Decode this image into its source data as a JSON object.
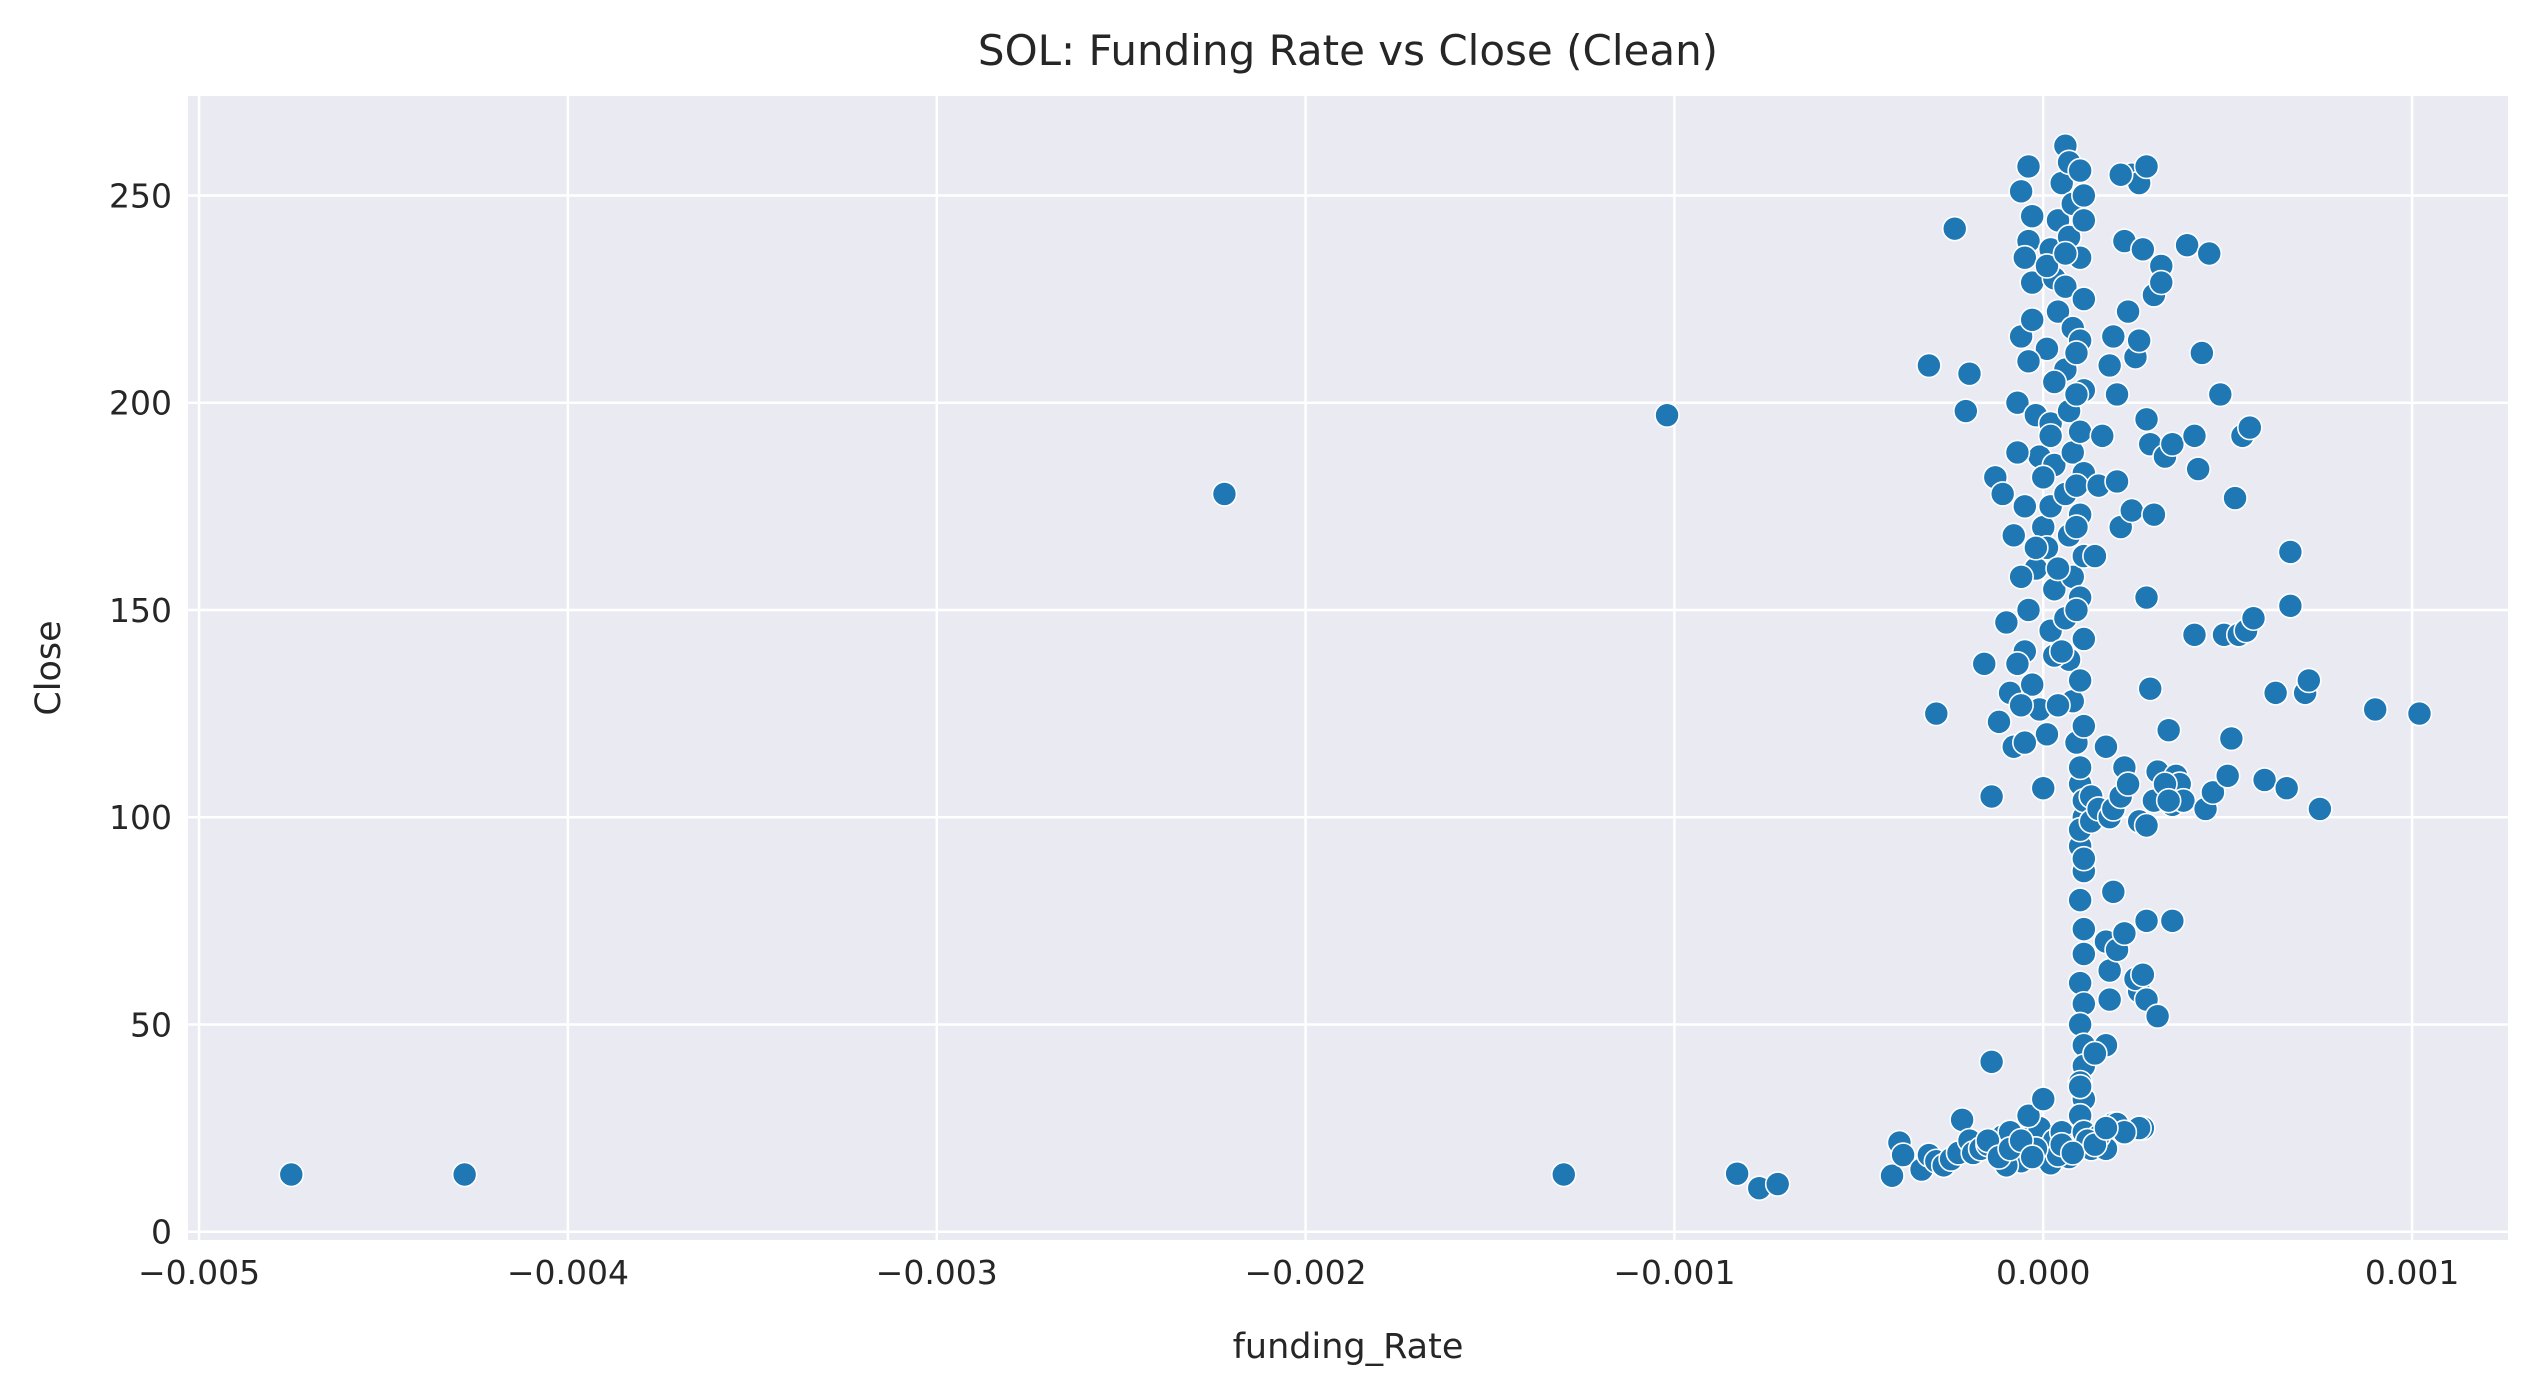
{
  "chart_data": {
    "type": "scatter",
    "title": "SOL: Funding Rate vs Close (Clean)",
    "xlabel": "funding_Rate",
    "ylabel": "Close",
    "xlim": [
      -0.00503,
      0.00126
    ],
    "ylim": [
      -2,
      274
    ],
    "xticks": [
      -0.005,
      -0.004,
      -0.003,
      -0.002,
      -0.001,
      0.0,
      0.001
    ],
    "xtick_labels": [
      "−0.005",
      "−0.004",
      "−0.003",
      "−0.002",
      "−0.001",
      "0.000",
      "0.001"
    ],
    "yticks": [
      0,
      50,
      100,
      150,
      200,
      250
    ],
    "ytick_labels": [
      "0",
      "50",
      "100",
      "150",
      "200",
      "250"
    ],
    "grid": true,
    "background": "#eaeaf2",
    "point_color": "#1f77b4",
    "points": [
      [
        -0.00475,
        13.8
      ],
      [
        -0.00428,
        13.8
      ],
      [
        -0.00222,
        178
      ],
      [
        -0.00102,
        197
      ],
      [
        -0.0013,
        13.8
      ],
      [
        -0.00083,
        14
      ],
      [
        -0.00077,
        10.5
      ],
      [
        -0.00072,
        11.5
      ],
      [
        -0.00041,
        13.5
      ],
      [
        -0.00039,
        21.5
      ],
      [
        -0.00038,
        18.5
      ],
      [
        -0.00033,
        15
      ],
      [
        -0.00031,
        18.5
      ],
      [
        -0.00029,
        17
      ],
      [
        -0.00027,
        16
      ],
      [
        -0.00025,
        17.5
      ],
      [
        -0.00023,
        19
      ],
      [
        -0.00022,
        27
      ],
      [
        -0.0002,
        22
      ],
      [
        -0.00019,
        19
      ],
      [
        -0.00017,
        20
      ],
      [
        -0.00015,
        21
      ],
      [
        -0.00013,
        22
      ],
      [
        -0.00011,
        23
      ],
      [
        -9e-05,
        24
      ],
      [
        -7e-05,
        19
      ],
      [
        -5e-05,
        21
      ],
      [
        -3e-05,
        23
      ],
      [
        -1e-05,
        25
      ],
      [
        1e-05,
        20
      ],
      [
        3e-05,
        22
      ],
      [
        5e-05,
        24
      ],
      [
        7e-05,
        19
      ],
      [
        9e-05,
        21
      ],
      [
        0.00011,
        23
      ],
      [
        0.00013,
        20
      ],
      [
        0.00016,
        22
      ],
      [
        0.00019,
        26
      ],
      [
        0.00022,
        24
      ],
      [
        0.00027,
        25
      ],
      [
        0.00017,
        20
      ],
      [
        -6e-05,
        17
      ],
      [
        2e-05,
        16.5
      ],
      [
        -4e-05,
        28
      ],
      [
        0.0,
        32
      ],
      [
        -0.00014,
        41
      ],
      [
        7e-05,
        18
      ],
      [
        -0.0001,
        16
      ],
      [
        4e-05,
        18.5
      ],
      [
        -2e-05,
        20
      ],
      [
        -0.00029,
        125
      ],
      [
        -0.00031,
        209
      ],
      [
        -0.00024,
        242
      ],
      [
        -0.0002,
        207
      ],
      [
        -0.00021,
        198
      ],
      [
        -0.00014,
        105
      ],
      [
        -0.00016,
        137
      ],
      [
        -0.00012,
        123
      ],
      [
        -0.00013,
        182
      ],
      [
        -0.00011,
        178
      ],
      [
        -0.0001,
        147
      ],
      [
        -9e-05,
        130
      ],
      [
        -8e-05,
        117
      ],
      [
        -7e-05,
        200
      ],
      [
        -6e-05,
        216
      ],
      [
        -6e-05,
        251
      ],
      [
        -4e-05,
        257
      ],
      [
        -4e-05,
        239
      ],
      [
        -3e-05,
        229
      ],
      [
        -5e-05,
        235
      ],
      [
        -3e-05,
        220
      ],
      [
        -2e-05,
        197
      ],
      [
        -1e-05,
        187
      ],
      [
        0.0,
        170
      ],
      [
        -2e-05,
        160
      ],
      [
        -4e-05,
        150
      ],
      [
        -5e-05,
        140
      ],
      [
        -3e-05,
        132
      ],
      [
        -1e-05,
        126
      ],
      [
        1e-05,
        120
      ],
      [
        2e-05,
        145
      ],
      [
        3e-05,
        155
      ],
      [
        1e-05,
        165
      ],
      [
        2e-05,
        175
      ],
      [
        3e-05,
        185
      ],
      [
        2e-05,
        195
      ],
      [
        3e-05,
        205
      ],
      [
        1e-05,
        213
      ],
      [
        4e-05,
        222
      ],
      [
        3e-05,
        230
      ],
      [
        2e-05,
        237
      ],
      [
        4e-05,
        244
      ],
      [
        5e-05,
        253
      ],
      [
        6e-05,
        262
      ],
      [
        7e-05,
        258
      ],
      [
        8e-05,
        248
      ],
      [
        7e-05,
        240
      ],
      [
        6e-05,
        228
      ],
      [
        8e-05,
        218
      ],
      [
        6e-05,
        208
      ],
      [
        7e-05,
        198
      ],
      [
        8e-05,
        188
      ],
      [
        6e-05,
        178
      ],
      [
        7e-05,
        168
      ],
      [
        8e-05,
        158
      ],
      [
        6e-05,
        148
      ],
      [
        7e-05,
        138
      ],
      [
        8e-05,
        128
      ],
      [
        9e-05,
        118
      ],
      [
        0.0001,
        108
      ],
      [
        0.00011,
        100
      ],
      [
        0.0001,
        93
      ],
      [
        0.00011,
        87
      ],
      [
        0.0001,
        80
      ],
      [
        0.00011,
        73
      ],
      [
        0.00011,
        67
      ],
      [
        0.0001,
        60
      ],
      [
        0.00011,
        55
      ],
      [
        0.0001,
        50
      ],
      [
        0.00011,
        45
      ],
      [
        0.00011,
        40
      ],
      [
        0.0001,
        36
      ],
      [
        0.00011,
        32
      ],
      [
        0.0001,
        28
      ],
      [
        0.00011,
        24
      ],
      [
        0.0001,
        35
      ],
      [
        0.00011,
        90
      ],
      [
        0.0001,
        97
      ],
      [
        0.00011,
        104
      ],
      [
        0.0001,
        112
      ],
      [
        0.00011,
        122
      ],
      [
        0.0001,
        133
      ],
      [
        0.00011,
        143
      ],
      [
        0.0001,
        153
      ],
      [
        0.00011,
        163
      ],
      [
        0.0001,
        173
      ],
      [
        0.00011,
        183
      ],
      [
        0.0001,
        193
      ],
      [
        0.00011,
        203
      ],
      [
        0.0001,
        215
      ],
      [
        0.00011,
        225
      ],
      [
        0.0001,
        235
      ],
      [
        0.00011,
        244
      ],
      [
        0.0001,
        256
      ],
      [
        0.00011,
        250
      ],
      [
        9e-05,
        202
      ],
      [
        9e-05,
        212
      ],
      [
        9e-05,
        170
      ],
      [
        9e-05,
        180
      ],
      [
        9e-05,
        150
      ],
      [
        0.0,
        107
      ],
      [
        3e-05,
        139
      ],
      [
        4e-05,
        127
      ],
      [
        -7e-05,
        188
      ],
      [
        -8e-05,
        168
      ],
      [
        -6e-05,
        158
      ],
      [
        -5e-05,
        175
      ],
      [
        -7e-05,
        137
      ],
      [
        -6e-05,
        127
      ],
      [
        -5e-05,
        118
      ],
      [
        0.00013,
        105
      ],
      [
        0.00014,
        163
      ],
      [
        0.00015,
        180
      ],
      [
        0.00016,
        192
      ],
      [
        0.00017,
        117
      ],
      [
        0.00018,
        209
      ],
      [
        0.00019,
        216
      ],
      [
        0.0002,
        202
      ],
      [
        0.0002,
        181
      ],
      [
        0.00021,
        170
      ],
      [
        0.00022,
        112
      ],
      [
        0.00022,
        239
      ],
      [
        0.00023,
        222
      ],
      [
        0.00024,
        174
      ],
      [
        0.00025,
        211
      ],
      [
        0.00026,
        215
      ],
      [
        0.00026,
        58
      ],
      [
        0.00027,
        237
      ],
      [
        0.00028,
        153
      ],
      [
        0.00028,
        196
      ],
      [
        0.00029,
        131
      ],
      [
        0.00029,
        190
      ],
      [
        0.0003,
        173
      ],
      [
        0.0003,
        226
      ],
      [
        0.00031,
        111
      ],
      [
        0.00032,
        233
      ],
      [
        0.00032,
        229
      ],
      [
        0.00033,
        187
      ],
      [
        0.00034,
        121
      ],
      [
        0.00035,
        190
      ],
      [
        0.00035,
        103
      ],
      [
        0.00036,
        110
      ],
      [
        0.00037,
        108
      ],
      [
        0.00038,
        104
      ],
      [
        0.00039,
        238
      ],
      [
        0.00041,
        144
      ],
      [
        0.00041,
        192
      ],
      [
        0.00042,
        184
      ],
      [
        0.00043,
        212
      ],
      [
        0.00044,
        102
      ],
      [
        0.00045,
        236
      ],
      [
        0.00046,
        106
      ],
      [
        0.00048,
        202
      ],
      [
        0.00049,
        144
      ],
      [
        0.0005,
        110
      ],
      [
        0.00051,
        119
      ],
      [
        0.00052,
        177
      ],
      [
        0.00053,
        144
      ],
      [
        0.00054,
        192
      ],
      [
        0.00055,
        145
      ],
      [
        0.00056,
        194
      ],
      [
        0.00057,
        148
      ],
      [
        0.0006,
        109
      ],
      [
        0.00063,
        130
      ],
      [
        0.00066,
        107
      ],
      [
        0.00067,
        164
      ],
      [
        0.00067,
        151
      ],
      [
        0.00071,
        130
      ],
      [
        0.00072,
        133
      ],
      [
        0.00075,
        102
      ],
      [
        0.0009,
        126
      ],
      [
        0.00102,
        125
      ],
      [
        0.00024,
        255
      ],
      [
        0.00026,
        253
      ],
      [
        0.00028,
        257
      ],
      [
        0.00021,
        255
      ],
      [
        0.00017,
        70
      ],
      [
        0.00018,
        63
      ],
      [
        0.00018,
        56
      ],
      [
        0.00019,
        82
      ],
      [
        0.0002,
        68
      ],
      [
        0.00022,
        72
      ],
      [
        0.00025,
        61
      ],
      [
        0.00027,
        62
      ],
      [
        0.00028,
        75
      ],
      [
        0.00028,
        56
      ],
      [
        0.00031,
        52
      ],
      [
        0.00035,
        75
      ],
      [
        0.00017,
        45
      ],
      [
        0.00014,
        43
      ],
      [
        0.00013,
        99
      ],
      [
        0.00015,
        102
      ],
      [
        0.00018,
        100
      ],
      [
        0.00019,
        102
      ],
      [
        0.00021,
        105
      ],
      [
        0.00023,
        108
      ],
      [
        0.00026,
        99
      ],
      [
        0.00028,
        98
      ],
      [
        0.0003,
        104
      ],
      [
        0.00033,
        108
      ],
      [
        0.00034,
        104
      ],
      [
        0.0002,
        26
      ],
      [
        0.00026,
        25
      ],
      [
        0.00022,
        24
      ],
      [
        0.00015,
        23
      ],
      [
        0.00012,
        22
      ],
      [
        -0.00015,
        22
      ],
      [
        -0.00012,
        18
      ],
      [
        -9e-05,
        20
      ],
      [
        -6e-05,
        22
      ],
      [
        -3e-05,
        18
      ],
      [
        5e-05,
        21
      ],
      [
        8e-05,
        19
      ],
      [
        0.00014,
        21
      ],
      [
        0.00017,
        25
      ],
      [
        -2e-05,
        165
      ],
      [
        0.0,
        182
      ],
      [
        2e-05,
        192
      ],
      [
        -4e-05,
        210
      ],
      [
        1e-05,
        233
      ],
      [
        -3e-05,
        245
      ],
      [
        6e-05,
        236
      ],
      [
        3e-05,
        205
      ],
      [
        4e-05,
        160
      ],
      [
        5e-05,
        140
      ]
    ]
  }
}
